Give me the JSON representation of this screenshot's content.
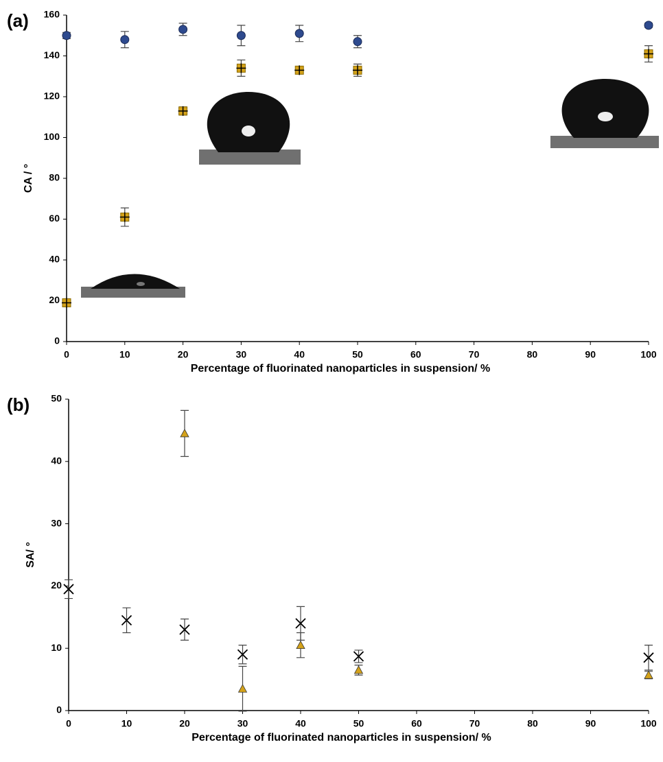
{
  "chart_data": [
    {
      "type": "scatter",
      "label": "(a)",
      "x_label": "Percentage of fluorinated nanoparticles in suspension/ %",
      "y_label": "CA / °",
      "xlim": [
        0,
        100
      ],
      "xticks": [
        0,
        10,
        20,
        30,
        40,
        50,
        60,
        70,
        80,
        90,
        100
      ],
      "ylim": [
        0,
        160
      ],
      "yticks": [
        0,
        20,
        40,
        60,
        80,
        100,
        120,
        140,
        160
      ],
      "x": [
        0,
        10,
        20,
        30,
        40,
        50,
        100
      ],
      "series": [
        {
          "marker": "circle",
          "color": "#2e4a8e",
          "values": [
            150,
            148,
            153,
            150,
            151,
            147,
            155
          ],
          "errors": [
            1.5,
            4,
            3,
            5,
            4,
            3,
            1
          ]
        },
        {
          "marker": "square-plus",
          "color": "#d4a21a",
          "values": [
            19,
            61,
            113,
            134,
            133,
            133,
            141
          ],
          "errors": [
            1.5,
            4.5,
            2,
            4,
            1,
            3,
            4
          ]
        }
      ]
    },
    {
      "type": "scatter",
      "label": "(b)",
      "x_label": "Percentage of fluorinated nanoparticles in suspension/ %",
      "y_label": "SA/ °",
      "xlim": [
        0,
        100
      ],
      "xticks": [
        0,
        10,
        20,
        30,
        40,
        50,
        60,
        70,
        80,
        90,
        100
      ],
      "ylim": [
        0,
        50
      ],
      "yticks": [
        0,
        10,
        20,
        30,
        40,
        50
      ],
      "x": [
        0,
        10,
        20,
        30,
        40,
        50,
        100
      ],
      "series": [
        {
          "marker": "cross",
          "color": "#000000",
          "values": [
            19.5,
            14.5,
            13,
            9,
            14,
            8.7,
            8.5
          ],
          "errors": [
            1.5,
            2,
            1.7,
            1.5,
            2.7,
            1,
            2
          ]
        },
        {
          "marker": "triangle",
          "color": "#d4a21a",
          "values": [
            null,
            null,
            44.5,
            3.5,
            10.5,
            6.5,
            5.7
          ],
          "errors": [
            null,
            null,
            3.7,
            3.6,
            2,
            0.8,
            0.6
          ]
        }
      ]
    }
  ]
}
